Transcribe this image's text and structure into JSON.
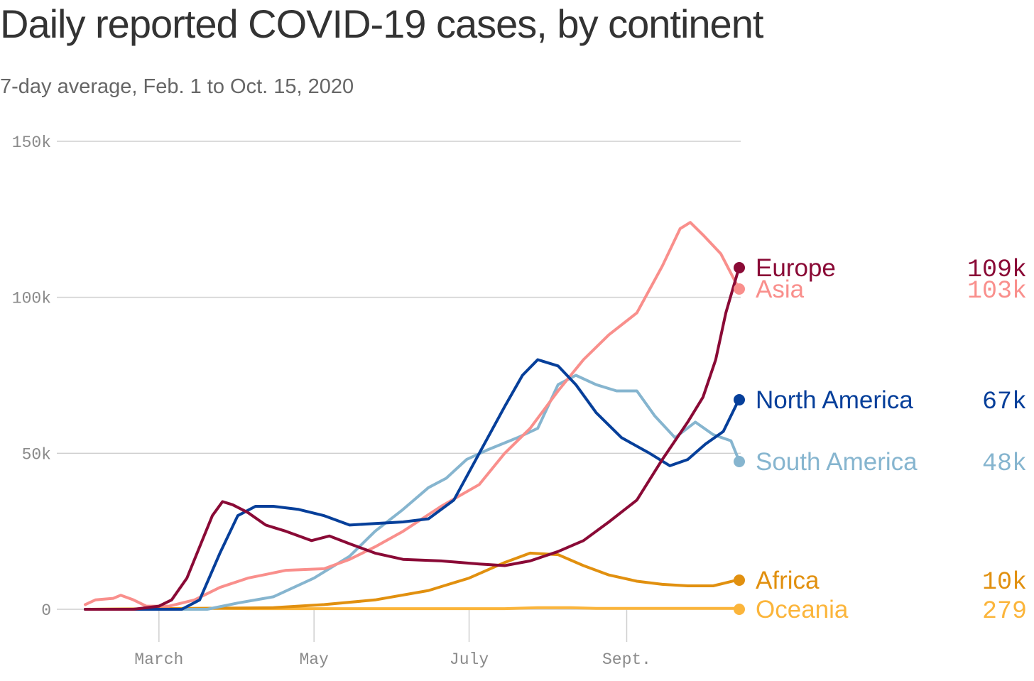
{
  "title": "Daily reported COVID-19 cases, by continent",
  "subtitle": "7-day average, Feb. 1 to Oct. 15, 2020",
  "chart_data": {
    "type": "line",
    "title": "Daily reported COVID-19 cases, by continent",
    "subtitle": "7-day average, Feb. 1 to Oct. 15, 2020",
    "xlabel": "",
    "ylabel": "",
    "x_range": [
      "2020-02-01",
      "2020-10-15"
    ],
    "ylim": [
      0,
      150000
    ],
    "y_ticks": [
      0,
      50000,
      100000,
      150000
    ],
    "y_tick_labels": [
      "0",
      "50k",
      "100k",
      "150k"
    ],
    "x_ticks": [
      "2020-03-01",
      "2020-05-01",
      "2020-07-01",
      "2020-09-01"
    ],
    "x_tick_labels": [
      "March",
      "May",
      "July",
      "Sept."
    ],
    "grid": true,
    "legend_placement": "right",
    "series": [
      {
        "name": "Europe",
        "color": "#8a0a36",
        "end_label": "109k",
        "points": [
          [
            "2020-02-01",
            0
          ],
          [
            "2020-02-20",
            0
          ],
          [
            "2020-03-01",
            1000
          ],
          [
            "2020-03-06",
            3000
          ],
          [
            "2020-03-12",
            10000
          ],
          [
            "2020-03-17",
            20000
          ],
          [
            "2020-03-22",
            30000
          ],
          [
            "2020-03-26",
            34500
          ],
          [
            "2020-03-30",
            33500
          ],
          [
            "2020-04-05",
            31000
          ],
          [
            "2020-04-12",
            27000
          ],
          [
            "2020-04-20",
            25000
          ],
          [
            "2020-04-30",
            22000
          ],
          [
            "2020-05-07",
            23500
          ],
          [
            "2020-05-15",
            21000
          ],
          [
            "2020-05-25",
            18000
          ],
          [
            "2020-06-05",
            16000
          ],
          [
            "2020-06-20",
            15500
          ],
          [
            "2020-07-05",
            14500
          ],
          [
            "2020-07-15",
            14000
          ],
          [
            "2020-07-25",
            15500
          ],
          [
            "2020-08-05",
            18500
          ],
          [
            "2020-08-15",
            22000
          ],
          [
            "2020-08-25",
            28000
          ],
          [
            "2020-09-05",
            35000
          ],
          [
            "2020-09-15",
            48000
          ],
          [
            "2020-09-25",
            60000
          ],
          [
            "2020-10-01",
            68000
          ],
          [
            "2020-10-06",
            80000
          ],
          [
            "2020-10-10",
            95000
          ],
          [
            "2020-10-15",
            109000
          ]
        ]
      },
      {
        "name": "Asia",
        "color": "#f98f8c",
        "end_label": "103k",
        "points": [
          [
            "2020-02-01",
            1500
          ],
          [
            "2020-02-05",
            3000
          ],
          [
            "2020-02-12",
            3500
          ],
          [
            "2020-02-15",
            4500
          ],
          [
            "2020-02-20",
            3000
          ],
          [
            "2020-02-25",
            1000
          ],
          [
            "2020-03-05",
            1000
          ],
          [
            "2020-03-15",
            3000
          ],
          [
            "2020-03-25",
            7000
          ],
          [
            "2020-04-05",
            10000
          ],
          [
            "2020-04-20",
            12500
          ],
          [
            "2020-05-05",
            13000
          ],
          [
            "2020-05-15",
            16000
          ],
          [
            "2020-05-25",
            20000
          ],
          [
            "2020-06-05",
            25000
          ],
          [
            "2020-06-20",
            33000
          ],
          [
            "2020-07-05",
            40000
          ],
          [
            "2020-07-15",
            50000
          ],
          [
            "2020-07-25",
            58000
          ],
          [
            "2020-08-05",
            70000
          ],
          [
            "2020-08-15",
            80000
          ],
          [
            "2020-08-25",
            88000
          ],
          [
            "2020-09-05",
            95000
          ],
          [
            "2020-09-15",
            110000
          ],
          [
            "2020-09-22",
            122000
          ],
          [
            "2020-09-26",
            124000
          ],
          [
            "2020-10-01",
            120000
          ],
          [
            "2020-10-08",
            114000
          ],
          [
            "2020-10-15",
            103000
          ]
        ]
      },
      {
        "name": "North America",
        "color": "#063f9a",
        "end_label": "67k",
        "points": [
          [
            "2020-02-01",
            0
          ],
          [
            "2020-03-10",
            0
          ],
          [
            "2020-03-17",
            3000
          ],
          [
            "2020-03-25",
            18000
          ],
          [
            "2020-04-01",
            30000
          ],
          [
            "2020-04-08",
            33000
          ],
          [
            "2020-04-15",
            33000
          ],
          [
            "2020-04-25",
            32000
          ],
          [
            "2020-05-05",
            30000
          ],
          [
            "2020-05-15",
            27000
          ],
          [
            "2020-05-25",
            27500
          ],
          [
            "2020-06-05",
            28000
          ],
          [
            "2020-06-15",
            29000
          ],
          [
            "2020-06-25",
            35000
          ],
          [
            "2020-07-05",
            50000
          ],
          [
            "2020-07-15",
            65000
          ],
          [
            "2020-07-22",
            75000
          ],
          [
            "2020-07-28",
            80000
          ],
          [
            "2020-08-05",
            78000
          ],
          [
            "2020-08-12",
            72000
          ],
          [
            "2020-08-20",
            63000
          ],
          [
            "2020-08-30",
            55000
          ],
          [
            "2020-09-10",
            50000
          ],
          [
            "2020-09-18",
            46000
          ],
          [
            "2020-09-25",
            48000
          ],
          [
            "2020-10-02",
            53000
          ],
          [
            "2020-10-09",
            57000
          ],
          [
            "2020-10-15",
            67000
          ]
        ]
      },
      {
        "name": "South America",
        "color": "#86b5cf",
        "end_label": "48k",
        "points": [
          [
            "2020-02-01",
            0
          ],
          [
            "2020-03-20",
            0
          ],
          [
            "2020-04-01",
            2000
          ],
          [
            "2020-04-15",
            4000
          ],
          [
            "2020-05-01",
            10000
          ],
          [
            "2020-05-15",
            17000
          ],
          [
            "2020-05-25",
            25000
          ],
          [
            "2020-06-05",
            32000
          ],
          [
            "2020-06-15",
            39000
          ],
          [
            "2020-06-22",
            42000
          ],
          [
            "2020-06-30",
            48000
          ],
          [
            "2020-07-08",
            51000
          ],
          [
            "2020-07-20",
            55000
          ],
          [
            "2020-07-28",
            58000
          ],
          [
            "2020-08-05",
            72000
          ],
          [
            "2020-08-12",
            75000
          ],
          [
            "2020-08-20",
            72000
          ],
          [
            "2020-08-28",
            70000
          ],
          [
            "2020-09-05",
            70000
          ],
          [
            "2020-09-12",
            62000
          ],
          [
            "2020-09-20",
            55000
          ],
          [
            "2020-09-28",
            60000
          ],
          [
            "2020-10-05",
            56000
          ],
          [
            "2020-10-12",
            54000
          ],
          [
            "2020-10-15",
            48000
          ]
        ]
      },
      {
        "name": "Africa",
        "color": "#e1900f",
        "end_label": "10k",
        "points": [
          [
            "2020-02-01",
            0
          ],
          [
            "2020-04-15",
            500
          ],
          [
            "2020-05-05",
            1500
          ],
          [
            "2020-05-25",
            3000
          ],
          [
            "2020-06-15",
            6000
          ],
          [
            "2020-07-01",
            10000
          ],
          [
            "2020-07-15",
            15000
          ],
          [
            "2020-07-25",
            18000
          ],
          [
            "2020-08-05",
            17500
          ],
          [
            "2020-08-15",
            14000
          ],
          [
            "2020-08-25",
            11000
          ],
          [
            "2020-09-05",
            9000
          ],
          [
            "2020-09-15",
            8000
          ],
          [
            "2020-09-25",
            7500
          ],
          [
            "2020-10-05",
            7500
          ],
          [
            "2020-10-15",
            9500
          ]
        ]
      },
      {
        "name": "Oceania",
        "color": "#fbb53b",
        "end_label": "279",
        "points": [
          [
            "2020-02-01",
            0
          ],
          [
            "2020-03-25",
            300
          ],
          [
            "2020-04-05",
            200
          ],
          [
            "2020-07-15",
            200
          ],
          [
            "2020-07-28",
            500
          ],
          [
            "2020-08-10",
            500
          ],
          [
            "2020-08-20",
            300
          ],
          [
            "2020-10-15",
            279
          ]
        ]
      }
    ]
  }
}
